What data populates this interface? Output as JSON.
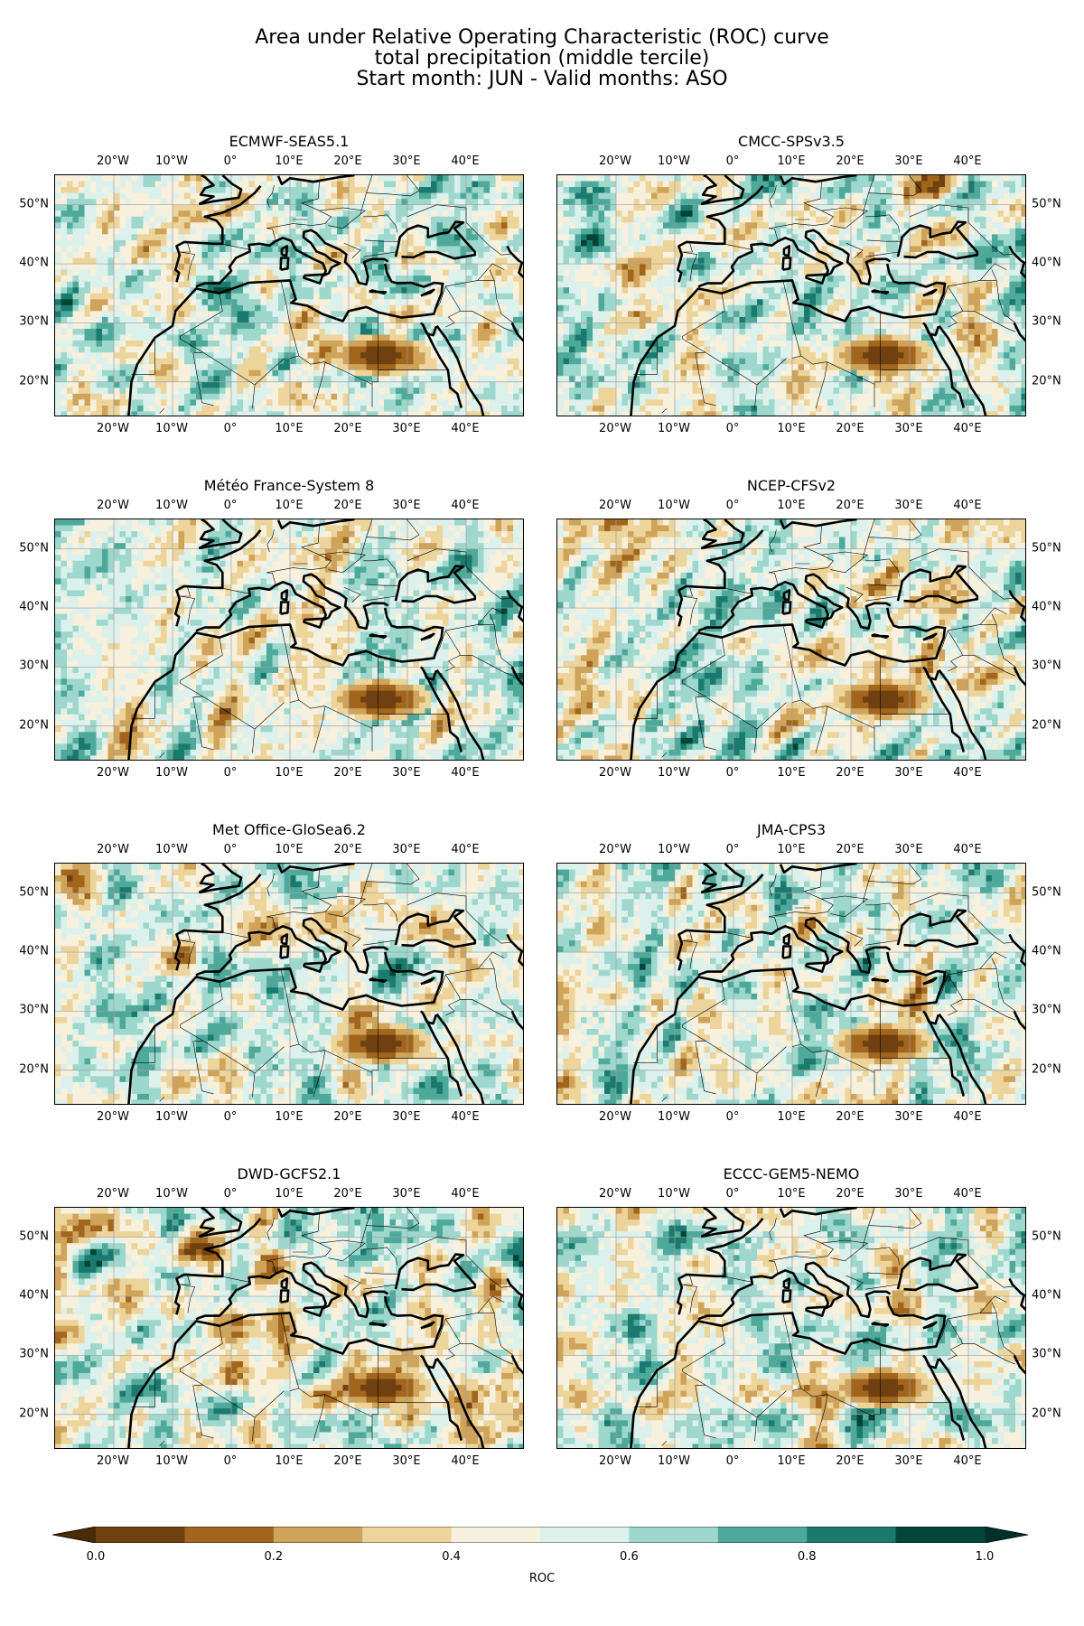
{
  "title": {
    "line1": "Area under Relative Operating Characteristic (ROC) curve",
    "line2": "total precipitation (middle tercile)",
    "line3": "Start month: JUN - Valid months: ASO"
  },
  "panels": [
    {
      "name": "ECMWF-SEAS5.1",
      "seed": 11
    },
    {
      "name": "CMCC-SPSv3.5",
      "seed": 23
    },
    {
      "name": "Météo France-System 8",
      "seed": 37
    },
    {
      "name": "NCEP-CFSv2",
      "seed": 41
    },
    {
      "name": "Met Office-GloSea6.2",
      "seed": 53
    },
    {
      "name": "JMA-CPS3",
      "seed": 67
    },
    {
      "name": "DWD-GCFS2.1",
      "seed": 79
    },
    {
      "name": "ECCC-GEM5-NEMO",
      "seed": 97
    }
  ],
  "map": {
    "lon_range": [
      -30,
      50
    ],
    "lat_range": [
      14,
      55
    ],
    "lon_ticks": [
      "20°W",
      "10°W",
      "0°",
      "10°E",
      "20°E",
      "30°E",
      "40°E"
    ],
    "lon_tick_values": [
      -20,
      -10,
      0,
      10,
      20,
      30,
      40
    ],
    "lat_ticks": [
      "50°N",
      "40°N",
      "30°N",
      "20°N"
    ],
    "lat_tick_values": [
      50,
      40,
      30,
      20
    ],
    "gridlines": true,
    "coastline_color": "#000000",
    "gridline_color": "#a0a0a0"
  },
  "colorbar": {
    "label": "ROC",
    "tick_labels": [
      "0.0",
      "0.2",
      "0.4",
      "0.6",
      "0.8",
      "1.0"
    ],
    "tick_values": [
      0.0,
      0.2,
      0.4,
      0.6,
      0.8,
      1.0
    ],
    "levels": [
      0.0,
      0.1,
      0.2,
      0.3,
      0.4,
      0.5,
      0.6,
      0.7,
      0.8,
      0.9,
      1.0
    ],
    "colors": [
      "#704010",
      "#a1651c",
      "#cfa35a",
      "#ecd49a",
      "#f6f0dd",
      "#dcf0ec",
      "#9ed7cc",
      "#4fa99b",
      "#1b7a6e",
      "#014536"
    ],
    "extend_low_color": "#4a2a07",
    "extend_high_color": "#00302a"
  }
}
